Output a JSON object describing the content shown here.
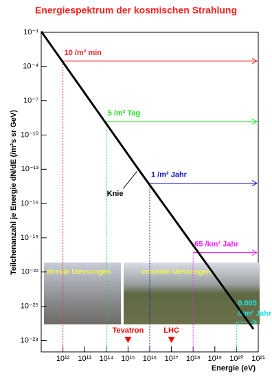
{
  "chart_data": {
    "type": "line",
    "title": "Energiespektrum der kosmischen Strahlung",
    "x_label": "Energie   (eV)",
    "y_label": "Teilchenanzahl je Energie  dN/dE   (/m²s sr GeV)",
    "log_x": true,
    "log_y": true,
    "xlim": [
      100000000000.0,
      1e+21
    ],
    "ylim": [
      1e-29,
      0.1
    ],
    "xticks": [
      {
        "value": 1000000000000.0,
        "label": "10¹²"
      },
      {
        "value": 10000000000000.0,
        "label": "10¹³"
      },
      {
        "value": 100000000000000.0,
        "label": "10¹⁴"
      },
      {
        "value": 1000000000000000.0,
        "label": "10¹⁵"
      },
      {
        "value": 1e+16,
        "label": "10¹⁶"
      },
      {
        "value": 1e+17,
        "label": "10¹⁷"
      },
      {
        "value": 1e+18,
        "label": "10¹⁸"
      },
      {
        "value": 1e+19,
        "label": "10¹⁹"
      },
      {
        "value": 1e+20,
        "label": "10²⁰"
      },
      {
        "value": 1e+21,
        "label": "10²¹"
      }
    ],
    "yticks": [
      {
        "value": 0.1,
        "label": "10⁻¹"
      },
      {
        "value": 0.0001,
        "label": "10⁻⁴"
      },
      {
        "value": 1e-07,
        "label": "10⁻⁷"
      },
      {
        "value": 1e-10,
        "label": "10⁻¹⁰"
      },
      {
        "value": 1e-13,
        "label": "10⁻¹³"
      },
      {
        "value": 1e-16,
        "label": "10⁻¹⁶"
      },
      {
        "value": 1e-19,
        "label": "10⁻¹⁹"
      },
      {
        "value": 1e-22,
        "label": "10⁻²²"
      },
      {
        "value": 1e-25,
        "label": "10⁻²⁵"
      },
      {
        "value": 1e-28,
        "label": "10⁻²⁸"
      }
    ],
    "series": [
      {
        "color": "#000000",
        "x": [
          100000000000.0,
          3000000000000000.0,
          6e+20
        ],
        "values": [
          0.12,
          1e-13,
          1e-27
        ]
      }
    ],
    "markers": [
      {
        "label": [
          "10 /m² min"
        ],
        "color": "#ff2020",
        "x": 1000000000000.0,
        "y": 0.0003
      },
      {
        "label": [
          "5 /m² Tag"
        ],
        "color": "#20e020",
        "x": 100000000000000.0,
        "y": 1.5e-09
      },
      {
        "label": [
          "1 /m² Jahr"
        ],
        "color": "#1010c0",
        "x": 1e+16,
        "y": 6e-15
      },
      {
        "label": [
          "65 /km² Jahr"
        ],
        "color": "#ff20ff",
        "x": 1e+18,
        "y": 5e-21
      },
      {
        "label": [
          "0.005",
          "/km² Jahr"
        ],
        "color": "#20e0e0",
        "x": 1e+20,
        "y": 4e-27
      }
    ],
    "knee_label": "Knie",
    "accelerators": [
      {
        "label": "Tevatron",
        "x": 1000000000000000.0
      },
      {
        "label": "LHC",
        "x": 1e+17
      }
    ],
    "accelerator_color": "#ff0000",
    "photo_labels": [
      "direkte Messungen",
      "indirekte Messungen"
    ]
  }
}
